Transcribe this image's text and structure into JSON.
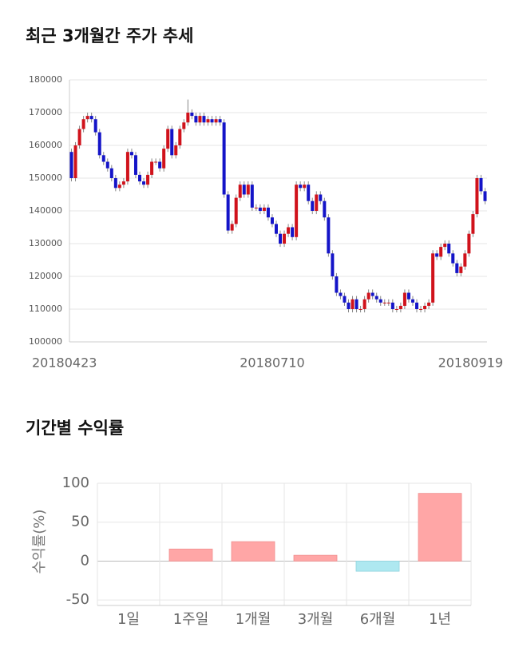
{
  "chart_data": [
    {
      "type": "candlestick",
      "title": "최근 3개월간 주가 추세",
      "categories": [
        "20180423",
        null,
        null,
        null,
        null,
        null,
        null,
        null,
        null,
        null,
        null,
        null,
        null,
        null,
        null,
        null,
        null,
        null,
        null,
        null,
        null,
        null,
        null,
        null,
        null,
        null,
        null,
        null,
        null,
        null,
        null,
        null,
        null,
        null,
        null,
        null,
        null,
        null,
        null,
        null,
        null,
        null,
        null,
        null,
        null,
        null,
        null,
        null,
        null,
        null,
        "20180710",
        null,
        null,
        null,
        null,
        null,
        null,
        null,
        null,
        null,
        null,
        null,
        null,
        null,
        null,
        null,
        null,
        null,
        null,
        null,
        null,
        null,
        null,
        null,
        null,
        null,
        null,
        null,
        null,
        null,
        null,
        null,
        null,
        null,
        null,
        null,
        null,
        null,
        null,
        null,
        null,
        null,
        null,
        null,
        null,
        null,
        null,
        null,
        null,
        null,
        null,
        null,
        null,
        "20180919"
      ],
      "open": [
        158000,
        150000,
        160000,
        165000,
        168000,
        169000,
        168000,
        164000,
        157000,
        155000,
        153000,
        150000,
        147000,
        148000,
        149000,
        158000,
        157000,
        151000,
        149000,
        148000,
        151000,
        155000,
        155000,
        153000,
        159000,
        165000,
        157000,
        160000,
        165000,
        167000,
        170000,
        169000,
        167000,
        169000,
        167000,
        168000,
        167000,
        168000,
        167000,
        145000,
        134000,
        136000,
        144000,
        148000,
        145000,
        148000,
        141000,
        141000,
        140000,
        141000,
        138000,
        136000,
        133000,
        130000,
        133000,
        135000,
        132000,
        148000,
        147000,
        148000,
        143000,
        140000,
        145000,
        143000,
        138000,
        127000,
        120000,
        115000,
        114000,
        112000,
        110000,
        113000,
        110000,
        110000,
        113000,
        115000,
        114000,
        113000,
        112000,
        112000,
        112000,
        110000,
        110000,
        111000,
        115000,
        113000,
        112000,
        110000,
        110000,
        111000,
        112000,
        127000,
        126000,
        129000,
        130000,
        127000,
        124000,
        121000,
        123000,
        127000,
        133000,
        139000,
        150000,
        146000
      ],
      "high": [
        159000,
        161000,
        166000,
        169000,
        170000,
        170000,
        169000,
        165000,
        158000,
        156000,
        154000,
        151000,
        149000,
        150000,
        159000,
        159000,
        158000,
        152000,
        150000,
        152000,
        156000,
        156000,
        156000,
        160000,
        166000,
        166000,
        161000,
        166000,
        168000,
        174000,
        171000,
        170000,
        170000,
        170000,
        169000,
        169000,
        169000,
        169000,
        168000,
        146000,
        137000,
        145000,
        149000,
        149000,
        149000,
        149000,
        142000,
        142000,
        142000,
        142000,
        139000,
        137000,
        134000,
        134000,
        136000,
        136000,
        149000,
        149000,
        149000,
        149000,
        144000,
        146000,
        146000,
        144000,
        139000,
        128000,
        121000,
        116000,
        115000,
        113000,
        114000,
        114000,
        111000,
        114000,
        116000,
        116000,
        115000,
        114000,
        113000,
        113000,
        113000,
        111000,
        112000,
        116000,
        116000,
        114000,
        113000,
        111000,
        112000,
        113000,
        128000,
        128000,
        130000,
        131000,
        131000,
        128000,
        125000,
        124000,
        128000,
        134000,
        140000,
        151000,
        151000,
        147000
      ],
      "low": [
        149000,
        149000,
        159000,
        164000,
        167000,
        167000,
        163000,
        156000,
        154000,
        152000,
        149000,
        146000,
        146000,
        147000,
        148000,
        156000,
        150000,
        148000,
        147000,
        147000,
        150000,
        154000,
        152000,
        152000,
        158000,
        156000,
        156000,
        159000,
        164000,
        166000,
        168000,
        166000,
        166000,
        166000,
        166000,
        166000,
        166000,
        166000,
        144000,
        133000,
        133000,
        135000,
        143000,
        144000,
        144000,
        140000,
        140000,
        139000,
        139000,
        137000,
        135000,
        132000,
        129000,
        129000,
        132000,
        131000,
        131000,
        146000,
        146000,
        142000,
        139000,
        139000,
        142000,
        137000,
        126000,
        119000,
        114000,
        113000,
        111000,
        109000,
        109000,
        109000,
        109000,
        109000,
        112000,
        113000,
        112000,
        111000,
        111000,
        111000,
        109000,
        109000,
        109000,
        110000,
        112000,
        111000,
        109000,
        109000,
        109000,
        110000,
        111000,
        125000,
        125000,
        128000,
        126000,
        123000,
        120000,
        120000,
        122000,
        126000,
        132000,
        138000,
        145000,
        142000
      ],
      "close": [
        150000,
        160000,
        165000,
        168000,
        169000,
        168000,
        164000,
        157000,
        155000,
        153000,
        150000,
        147000,
        148000,
        149000,
        158000,
        157000,
        151000,
        149000,
        148000,
        151000,
        155000,
        155000,
        153000,
        159000,
        165000,
        157000,
        160000,
        165000,
        167000,
        170000,
        169000,
        167000,
        169000,
        167000,
        168000,
        167000,
        168000,
        167000,
        145000,
        134000,
        136000,
        144000,
        148000,
        145000,
        148000,
        141000,
        141000,
        140000,
        141000,
        138000,
        136000,
        133000,
        130000,
        133000,
        135000,
        132000,
        148000,
        147000,
        148000,
        143000,
        140000,
        145000,
        143000,
        138000,
        127000,
        120000,
        115000,
        114000,
        112000,
        110000,
        113000,
        110000,
        110000,
        113000,
        115000,
        114000,
        113000,
        112000,
        112000,
        112000,
        110000,
        110000,
        111000,
        115000,
        113000,
        112000,
        110000,
        110000,
        111000,
        112000,
        127000,
        126000,
        129000,
        130000,
        127000,
        124000,
        121000,
        123000,
        127000,
        133000,
        139000,
        150000,
        146000,
        143000
      ],
      "up_color": "#d0121b",
      "down_color": "#1414c8",
      "ylim": [
        100000,
        180000
      ],
      "yticks": [
        100000,
        110000,
        120000,
        130000,
        140000,
        150000,
        160000,
        170000,
        180000
      ],
      "grid": true
    },
    {
      "type": "bar",
      "title": "기간별 수익률",
      "ylabel": "수익률(%)",
      "categories": [
        "1일",
        "1주일",
        "1개월",
        "3개월",
        "6개월",
        "1년"
      ],
      "values": [
        0,
        15.5,
        25,
        7.5,
        -13,
        87
      ],
      "colors": [
        "#ffa6a6",
        "#ffa6a6",
        "#ffa6a6",
        "#ffa6a6",
        "#aee8f0",
        "#ffa6a6"
      ],
      "ylim": [
        -57,
        100
      ],
      "yticks": [
        -50,
        0,
        50,
        100
      ],
      "grid": true
    }
  ]
}
